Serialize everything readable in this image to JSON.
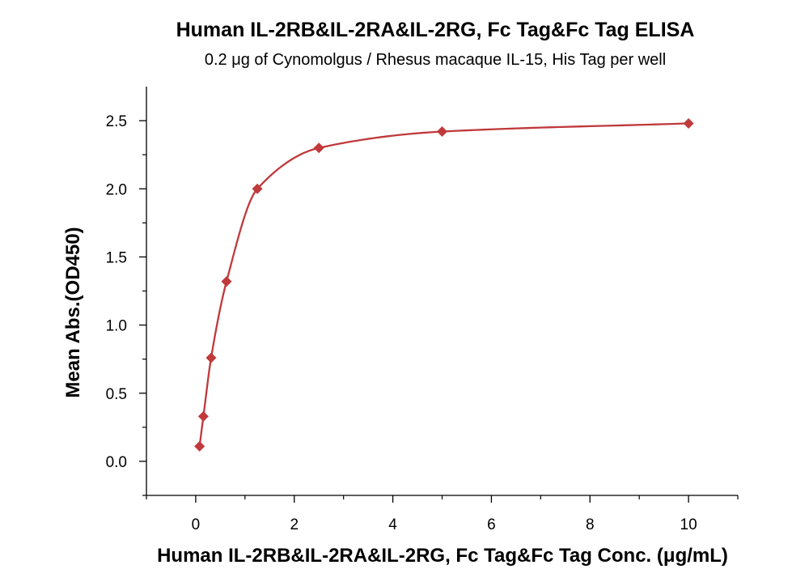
{
  "chart_data": {
    "type": "scatter",
    "title": "Human IL-2RB&IL-2RA&IL-2RG, Fc Tag&Fc Tag ELISA",
    "subtitle": "0.2 μg of Cynomolgus / Rhesus macaque IL-15, His Tag per well",
    "xlabel": "Human IL-2RB&IL-2RA&IL-2RG, Fc Tag&Fc Tag Conc. (μg/mL)",
    "ylabel": "Mean Abs.(OD450)",
    "xlim": [
      -1,
      11
    ],
    "ylim": [
      -0.25,
      2.75
    ],
    "xticks": [
      0,
      2,
      4,
      6,
      8,
      10
    ],
    "xtick_labels": [
      "0",
      "2",
      "4",
      "6",
      "8",
      "10"
    ],
    "yticks": [
      0.0,
      0.5,
      1.0,
      1.5,
      2.0,
      2.5
    ],
    "ytick_labels": [
      "0.0",
      "0.5",
      "1.0",
      "1.5",
      "2.0",
      "2.5"
    ],
    "grid": false,
    "series": [
      {
        "color": "#c0393b",
        "marker": "diamond",
        "x": [
          0.078,
          0.156,
          0.313,
          0.625,
          1.25,
          2.5,
          5,
          10
        ],
        "y": [
          0.11,
          0.33,
          0.76,
          1.32,
          2.0,
          2.3,
          2.42,
          2.48
        ],
        "fit_curve": true
      }
    ]
  }
}
